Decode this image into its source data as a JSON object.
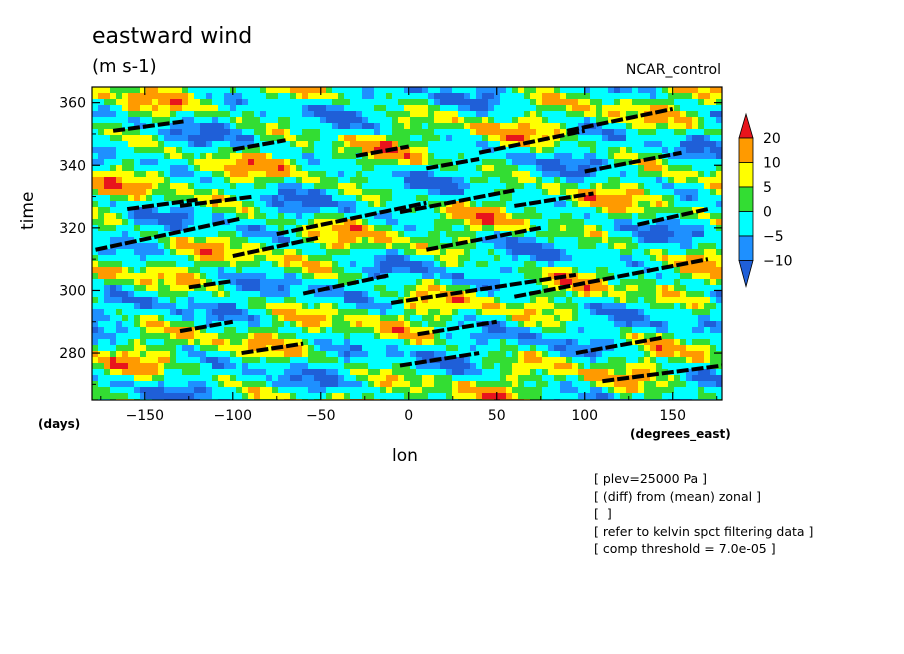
{
  "chart_data": {
    "type": "heatmap",
    "title": "eastward wind",
    "subtitle": "(m s-1)",
    "run_label": "NCAR_control",
    "xlabel": "lon",
    "ylabel": "time",
    "x_unit": "(degrees_east)",
    "y_unit": "(days)",
    "xlim": [
      -180,
      178
    ],
    "ylim": [
      265,
      365
    ],
    "x_ticks": [
      -150,
      -100,
      -50,
      0,
      50,
      100,
      150
    ],
    "y_ticks": [
      280,
      300,
      320,
      340,
      360
    ],
    "colorbar": {
      "levels": [
        20,
        10,
        5,
        0,
        -5,
        -10
      ],
      "colors": {
        "gt20": "#e8141c",
        "10to20": "#ff9a00",
        "5to10": "#ffff00",
        "0to5": "#33dd33",
        "m5to0": "#00ffff",
        "m10tom5": "#1e90ff",
        "ltm10": "#1f5fd8",
        "deep": "#1a3cc8"
      }
    },
    "kelvin_threshold_segments": [
      {
        "lon0": -168,
        "t0": 351,
        "lon1": -128,
        "t1": 354
      },
      {
        "lon0": -160,
        "t0": 326,
        "lon1": -120,
        "t1": 329
      },
      {
        "lon0": -178,
        "t0": 313,
        "lon1": -95,
        "t1": 323
      },
      {
        "lon0": -130,
        "t0": 327,
        "lon1": -88,
        "t1": 330
      },
      {
        "lon0": -100,
        "t0": 311,
        "lon1": -50,
        "t1": 317
      },
      {
        "lon0": -75,
        "t0": 318,
        "lon1": 10,
        "t1": 328
      },
      {
        "lon0": -5,
        "t0": 325,
        "lon1": 60,
        "t1": 332
      },
      {
        "lon0": 10,
        "t0": 313,
        "lon1": 75,
        "t1": 320
      },
      {
        "lon0": 60,
        "t0": 327,
        "lon1": 105,
        "t1": 331
      },
      {
        "lon0": -60,
        "t0": 299,
        "lon1": -10,
        "t1": 305
      },
      {
        "lon0": -10,
        "t0": 296,
        "lon1": 95,
        "t1": 305
      },
      {
        "lon0": 60,
        "t0": 298,
        "lon1": 170,
        "t1": 310
      },
      {
        "lon0": -130,
        "t0": 287,
        "lon1": -100,
        "t1": 290
      },
      {
        "lon0": -5,
        "t0": 276,
        "lon1": 40,
        "t1": 280
      },
      {
        "lon0": 110,
        "t0": 271,
        "lon1": 178,
        "t1": 276
      },
      {
        "lon0": 10,
        "t0": 339,
        "lon1": 40,
        "t1": 342
      },
      {
        "lon0": 40,
        "t0": 344,
        "lon1": 100,
        "t1": 351
      },
      {
        "lon0": 90,
        "t0": 351,
        "lon1": 150,
        "t1": 358
      },
      {
        "lon0": -30,
        "t0": 343,
        "lon1": 0,
        "t1": 346
      },
      {
        "lon0": -100,
        "t0": 345,
        "lon1": -70,
        "t1": 348
      },
      {
        "lon0": -125,
        "t0": 301,
        "lon1": -100,
        "t1": 303
      },
      {
        "lon0": 100,
        "t0": 338,
        "lon1": 155,
        "t1": 344
      },
      {
        "lon0": 5,
        "t0": 286,
        "lon1": 50,
        "t1": 290
      },
      {
        "lon0": -95,
        "t0": 280,
        "lon1": -60,
        "t1": 283
      },
      {
        "lon0": 95,
        "t0": 280,
        "lon1": 145,
        "t1": 285
      },
      {
        "lon0": 130,
        "t0": 321,
        "lon1": 170,
        "t1": 326
      }
    ]
  },
  "notes": [
    "[ plev=25000 Pa ]",
    "[ (diff) from (mean) zonal ]",
    "[  ]",
    "[ refer to kelvin spct filtering data ]",
    "[ comp threshold = 7.0e-05 ]"
  ]
}
